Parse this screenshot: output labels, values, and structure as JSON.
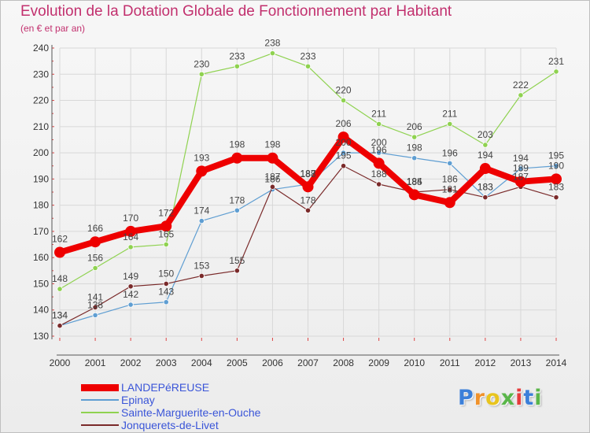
{
  "title": "Evolution de la Dotation Globale de Fonctionnement par Habitant",
  "subtitle": "(en € et par an)",
  "logo": {
    "letters": [
      "P",
      "r",
      "o",
      "x",
      "i",
      "t",
      "i"
    ],
    "colors": [
      "#3b7fd9",
      "#f0922b",
      "#e8c41e",
      "#5ab64a",
      "#e63c3c",
      "#3b7fd9",
      "#5ab64a"
    ]
  },
  "colors": {
    "title": "#c2306e",
    "legend_text": "#3a55d8",
    "grid": "#d8d8d8",
    "axis": "#555555"
  },
  "chart_data": {
    "type": "line",
    "title": "Evolution de la Dotation Globale de Fonctionnement par Habitant",
    "xlabel": "",
    "ylabel": "",
    "ylim": [
      130,
      240
    ],
    "yticks": [
      130,
      140,
      150,
      160,
      170,
      180,
      190,
      200,
      210,
      220,
      230,
      240
    ],
    "x": [
      "2000",
      "2001",
      "2002",
      "2003",
      "2004",
      "2005",
      "2006",
      "2007",
      "2008",
      "2009",
      "2010",
      "2011",
      "2012",
      "2013",
      "2014"
    ],
    "series": [
      {
        "name": "Sainte-Marguerite-en-Ouche",
        "color": "#8fd250",
        "values": [
          148,
          156,
          164,
          165,
          230,
          233,
          238,
          233,
          220,
          211,
          206,
          211,
          203,
          222,
          231
        ]
      },
      {
        "name": "Epinay",
        "color": "#5f9ed2",
        "values": [
          134,
          138,
          142,
          143,
          174,
          178,
          186,
          188,
          200,
          200,
          198,
          196,
          183,
          194,
          195
        ]
      },
      {
        "name": "Jonquerets-de-Livet",
        "color": "#7a2a2a",
        "values": [
          134,
          141,
          149,
          150,
          153,
          155,
          187,
          178,
          195,
          188,
          185,
          186,
          183,
          187,
          183
        ]
      },
      {
        "name": "LANDEPéREUSE",
        "color": "#ee0000",
        "values": [
          162,
          166,
          170,
          172,
          193,
          198,
          198,
          187,
          206,
          196,
          184,
          181,
          194,
          189,
          190
        ]
      }
    ],
    "legend_order": [
      "LANDEPéREUSE",
      "Epinay",
      "Sainte-Marguerite-en-Ouche",
      "Jonquerets-de-Livet"
    ]
  }
}
